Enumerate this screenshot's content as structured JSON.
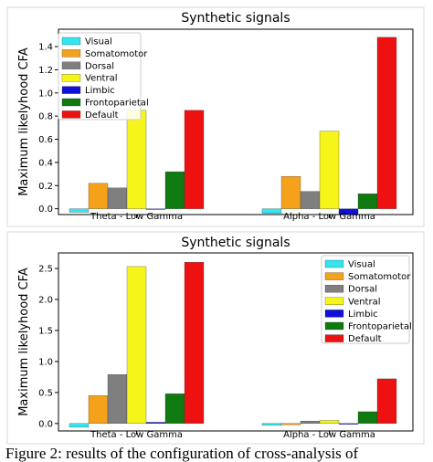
{
  "colors": {
    "Visual": "#33e6ee",
    "Somatomotor": "#f5a11a",
    "Dorsal": "#7f7f7f",
    "Ventral": "#f5f51a",
    "Limbic": "#1010d8",
    "Frontoparietal": "#0f7a0f",
    "Default": "#ee1111"
  },
  "chart_data": [
    {
      "type": "bar",
      "title": "Synthetic signals",
      "xlabel": "",
      "ylabel": "Maximum likelyhood CFA",
      "categories": [
        "Theta - Low Gamma",
        "Alpha - Low Gamma"
      ],
      "ylim": [
        -0.05,
        1.55
      ],
      "yticks": [
        0.0,
        0.2,
        0.4,
        0.6,
        0.8,
        1.0,
        1.2,
        1.4
      ],
      "ytick_labels": [
        "0.0",
        "0.2",
        "0.4",
        "0.6",
        "0.8",
        "1.0",
        "1.2",
        "1.4"
      ],
      "legend_position": "top-left",
      "grid": false,
      "series": [
        {
          "name": "Visual",
          "values": [
            -0.03,
            -0.04
          ]
        },
        {
          "name": "Somatomotor",
          "values": [
            0.22,
            0.28
          ]
        },
        {
          "name": "Dorsal",
          "values": [
            0.18,
            0.15
          ]
        },
        {
          "name": "Ventral",
          "values": [
            0.85,
            0.67
          ]
        },
        {
          "name": "Limbic",
          "values": [
            0.0,
            -0.05
          ]
        },
        {
          "name": "Frontoparietal",
          "values": [
            0.32,
            0.13
          ]
        },
        {
          "name": "Default",
          "values": [
            0.85,
            1.48
          ]
        }
      ]
    },
    {
      "type": "bar",
      "title": "Synthetic signals",
      "xlabel": "",
      "ylabel": "Maximum likelyhood CFA",
      "categories": [
        "Theta - Low Gamma",
        "Alpha - Low Gamma"
      ],
      "ylim": [
        -0.12,
        2.75
      ],
      "yticks": [
        0.0,
        0.5,
        1.0,
        1.5,
        2.0,
        2.5
      ],
      "ytick_labels": [
        "0.0",
        "0.5",
        "1.0",
        "1.5",
        "2.0",
        "2.5"
      ],
      "legend_position": "top-right",
      "grid": false,
      "series": [
        {
          "name": "Visual",
          "values": [
            -0.06,
            -0.03
          ]
        },
        {
          "name": "Somatomotor",
          "values": [
            0.45,
            -0.02
          ]
        },
        {
          "name": "Dorsal",
          "values": [
            0.79,
            0.04
          ]
        },
        {
          "name": "Ventral",
          "values": [
            2.53,
            0.05
          ]
        },
        {
          "name": "Limbic",
          "values": [
            0.02,
            -0.01
          ]
        },
        {
          "name": "Frontoparietal",
          "values": [
            0.48,
            0.19
          ]
        },
        {
          "name": "Default",
          "values": [
            2.6,
            0.72
          ]
        }
      ]
    }
  ],
  "caption": "Figure 2: results of the configuration of cross-analysis of"
}
